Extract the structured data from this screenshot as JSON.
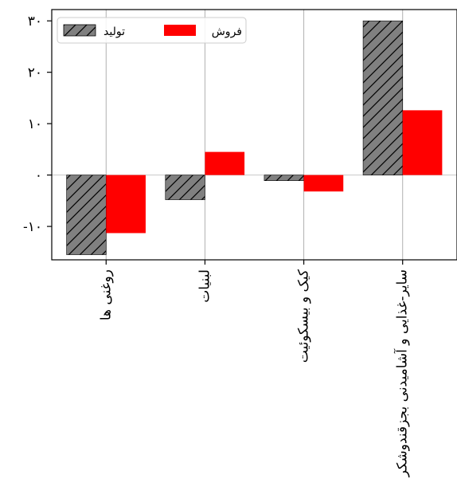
{
  "chart_data": {
    "type": "bar",
    "categories": [
      "روغنی ها",
      "لبنیات",
      "کیک و بیسکوئیت",
      "سایر-غذایی و آشامیدنی بجزقندوشکر"
    ],
    "series": [
      {
        "name": "تولید",
        "values": [
          -15.5,
          -4.8,
          -1.1,
          30.0
        ],
        "color": "#808080",
        "hatch": "diagonal"
      },
      {
        "name": "فروش",
        "values": [
          -11.3,
          4.5,
          -3.2,
          12.6
        ],
        "color": "#ff0000",
        "hatch": "none"
      }
    ],
    "ylim": [
      -16.5,
      32.2
    ],
    "yticks": [
      -10,
      0,
      10,
      20,
      30
    ],
    "ytick_labels": [
      "-۱۰",
      "۰",
      "۱۰",
      "۲۰",
      "۳۰"
    ],
    "title": "",
    "xlabel": "",
    "ylabel": "",
    "grid": "vertical-x",
    "zero_line": true,
    "legend_position": "top-left"
  }
}
